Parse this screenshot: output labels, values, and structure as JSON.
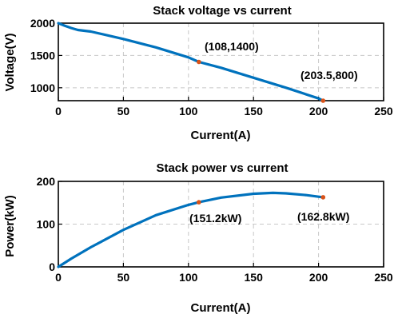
{
  "colors": {
    "series": "#0072BD",
    "marker": "#D95319"
  },
  "chart_data": [
    {
      "type": "line",
      "title": "Stack voltage vs current",
      "xlabel": "Current(A)",
      "ylabel": "Voltage(V)",
      "xlim": [
        0,
        250
      ],
      "ylim": [
        800,
        2000
      ],
      "xticks": [
        0,
        50,
        100,
        150,
        200,
        250
      ],
      "yticks": [
        1000,
        1500,
        2000
      ],
      "grid": true,
      "series": [
        {
          "x": [
            0,
            5,
            10,
            15,
            25,
            50,
            75,
            100,
            108,
            125,
            150,
            175,
            200,
            203.5
          ],
          "y": [
            2000,
            1960,
            1925,
            1895,
            1870,
            1755,
            1625,
            1470,
            1400,
            1310,
            1155,
            1000,
            835,
            800
          ]
        }
      ],
      "markers": [
        {
          "x": 108,
          "y": 1400
        },
        {
          "x": 203.5,
          "y": 800
        }
      ],
      "annotations": [
        {
          "text": "(108,1400)",
          "x": 108,
          "y": 1400
        },
        {
          "text": "(203.5,800)",
          "x": 203.5,
          "y": 800
        }
      ]
    },
    {
      "type": "line",
      "title": "Stack power vs current",
      "xlabel": "Current(A)",
      "ylabel": "Power(kW)",
      "xlim": [
        0,
        250
      ],
      "ylim": [
        0,
        200
      ],
      "xticks": [
        0,
        50,
        100,
        150,
        200,
        250
      ],
      "yticks": [
        0,
        100,
        200
      ],
      "grid": true,
      "series": [
        {
          "x": [
            0,
            10,
            25,
            50,
            75,
            100,
            108,
            125,
            150,
            165,
            175,
            190,
            203.5
          ],
          "y": [
            0,
            19.5,
            46,
            86.5,
            121,
            145,
            151.2,
            162,
            171,
            173,
            172,
            168,
            162.8
          ]
        }
      ],
      "markers": [
        {
          "x": 108,
          "y": 151.2
        },
        {
          "x": 203.5,
          "y": 162.8
        }
      ],
      "annotations": [
        {
          "text": "(151.2kW)",
          "x": 108,
          "y": 151.2
        },
        {
          "text": "(162.8kW)",
          "x": 203.5,
          "y": 162.8
        }
      ]
    }
  ]
}
